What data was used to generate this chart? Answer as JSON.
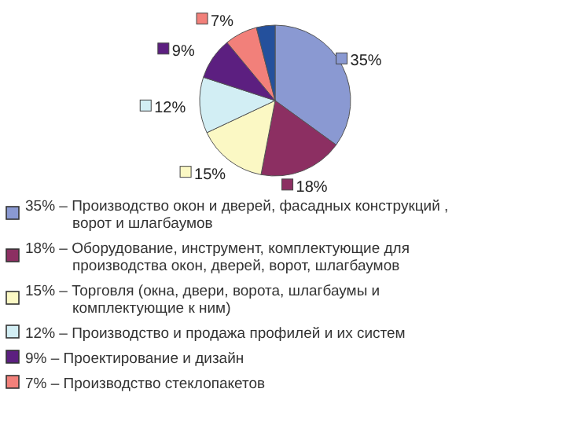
{
  "chart_data": {
    "type": "pie",
    "categories": [
      "35% – Производство окон и дверей, фасадных конструкций , ворот и шлагбаумов",
      "18% – Оборудование, инструмент, комплектующие для производства окон, дверей, ворот, шлагбаумов",
      "15% – Торговля (окна, двери, ворота, шлагбаумы и комплектующие к ним)",
      "12% – Производство и продажа профилей и их систем",
      "9% – Проектирование и дизайн",
      "7% – Производство стеклопакетов",
      null
    ],
    "values": [
      35,
      18,
      15,
      12,
      9,
      7,
      4
    ],
    "value_labels": [
      "35%",
      "18%",
      "15%",
      "12%",
      "9%",
      "7%",
      null
    ],
    "colors": [
      "#8a99d2",
      "#8c2f62",
      "#fbf8c4",
      "#d2eef4",
      "#5c1f80",
      "#f2807a",
      "#24509c"
    ],
    "legend": "bottom"
  }
}
